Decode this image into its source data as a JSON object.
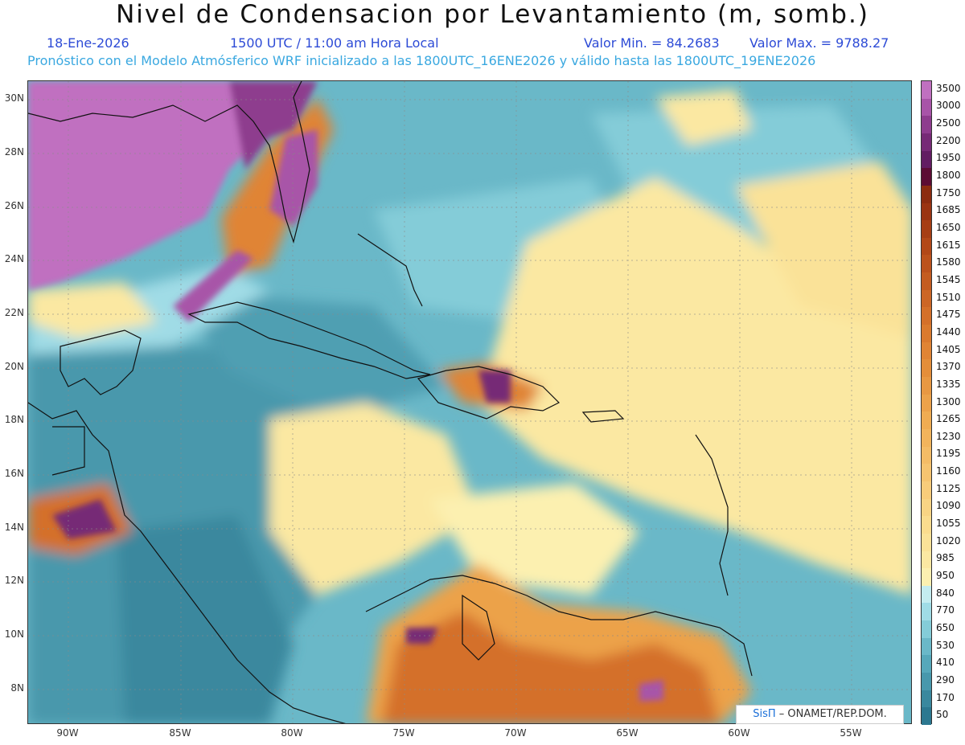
{
  "header": {
    "title": "Nivel de Condensacion por Levantamiento (m, somb.)",
    "date": "18-Ene-2026",
    "time": "1500 UTC / 11:00 am Hora Local",
    "min_label": "Valor Min. = 84.2683",
    "max_label": "Valor Max. = 9788.27",
    "info": "Pronóstico con el Modelo Atmósferico WRF inicializado a las 1800UTC_16ENE2026 y válido hasta las  1800UTC_19ENE2026"
  },
  "map": {
    "lat_labels": [
      "30N",
      "28N",
      "26N",
      "24N",
      "22N",
      "20N",
      "18N",
      "16N",
      "14N",
      "12N",
      "10N",
      "8N"
    ],
    "lon_labels": [
      "90W",
      "85W",
      "80W",
      "75W",
      "70W",
      "65W",
      "60W",
      "55W"
    ],
    "grid": true
  },
  "colorbar": {
    "levels": [
      "3500",
      "3000",
      "2500",
      "2200",
      "1950",
      "1800",
      "1750",
      "1685",
      "1650",
      "1615",
      "1580",
      "1545",
      "1510",
      "1475",
      "1440",
      "1405",
      "1370",
      "1335",
      "1300",
      "1265",
      "1230",
      "1195",
      "1160",
      "1125",
      "1090",
      "1055",
      "1020",
      "985",
      "950",
      "840",
      "770",
      "650",
      "530",
      "410",
      "290",
      "170",
      "50"
    ],
    "colors": [
      "#c070c0",
      "#a854a8",
      "#8e3c8e",
      "#762a76",
      "#621c62",
      "#5c0c34",
      "#8c2c10",
      "#9a3412",
      "#a63e14",
      "#b24818",
      "#bc521c",
      "#c45c20",
      "#cc6626",
      "#d4702a",
      "#da7a2e",
      "#e08434",
      "#e48e3a",
      "#e89842",
      "#eca24a",
      "#f0ac52",
      "#f2b45c",
      "#f4bc66",
      "#f6c470",
      "#f8cc7a",
      "#f8d484",
      "#fadc8e",
      "#fae298",
      "#fbe8a2",
      "#fcf0b0",
      "#c4ecf0",
      "#a0dce6",
      "#84ccd8",
      "#6ab8c8",
      "#56a8ba",
      "#4898ac",
      "#3a889e",
      "#2c7890"
    ]
  },
  "credit": {
    "logo": "SisΠ",
    "text": "– ONAMET/REP.DOM."
  }
}
